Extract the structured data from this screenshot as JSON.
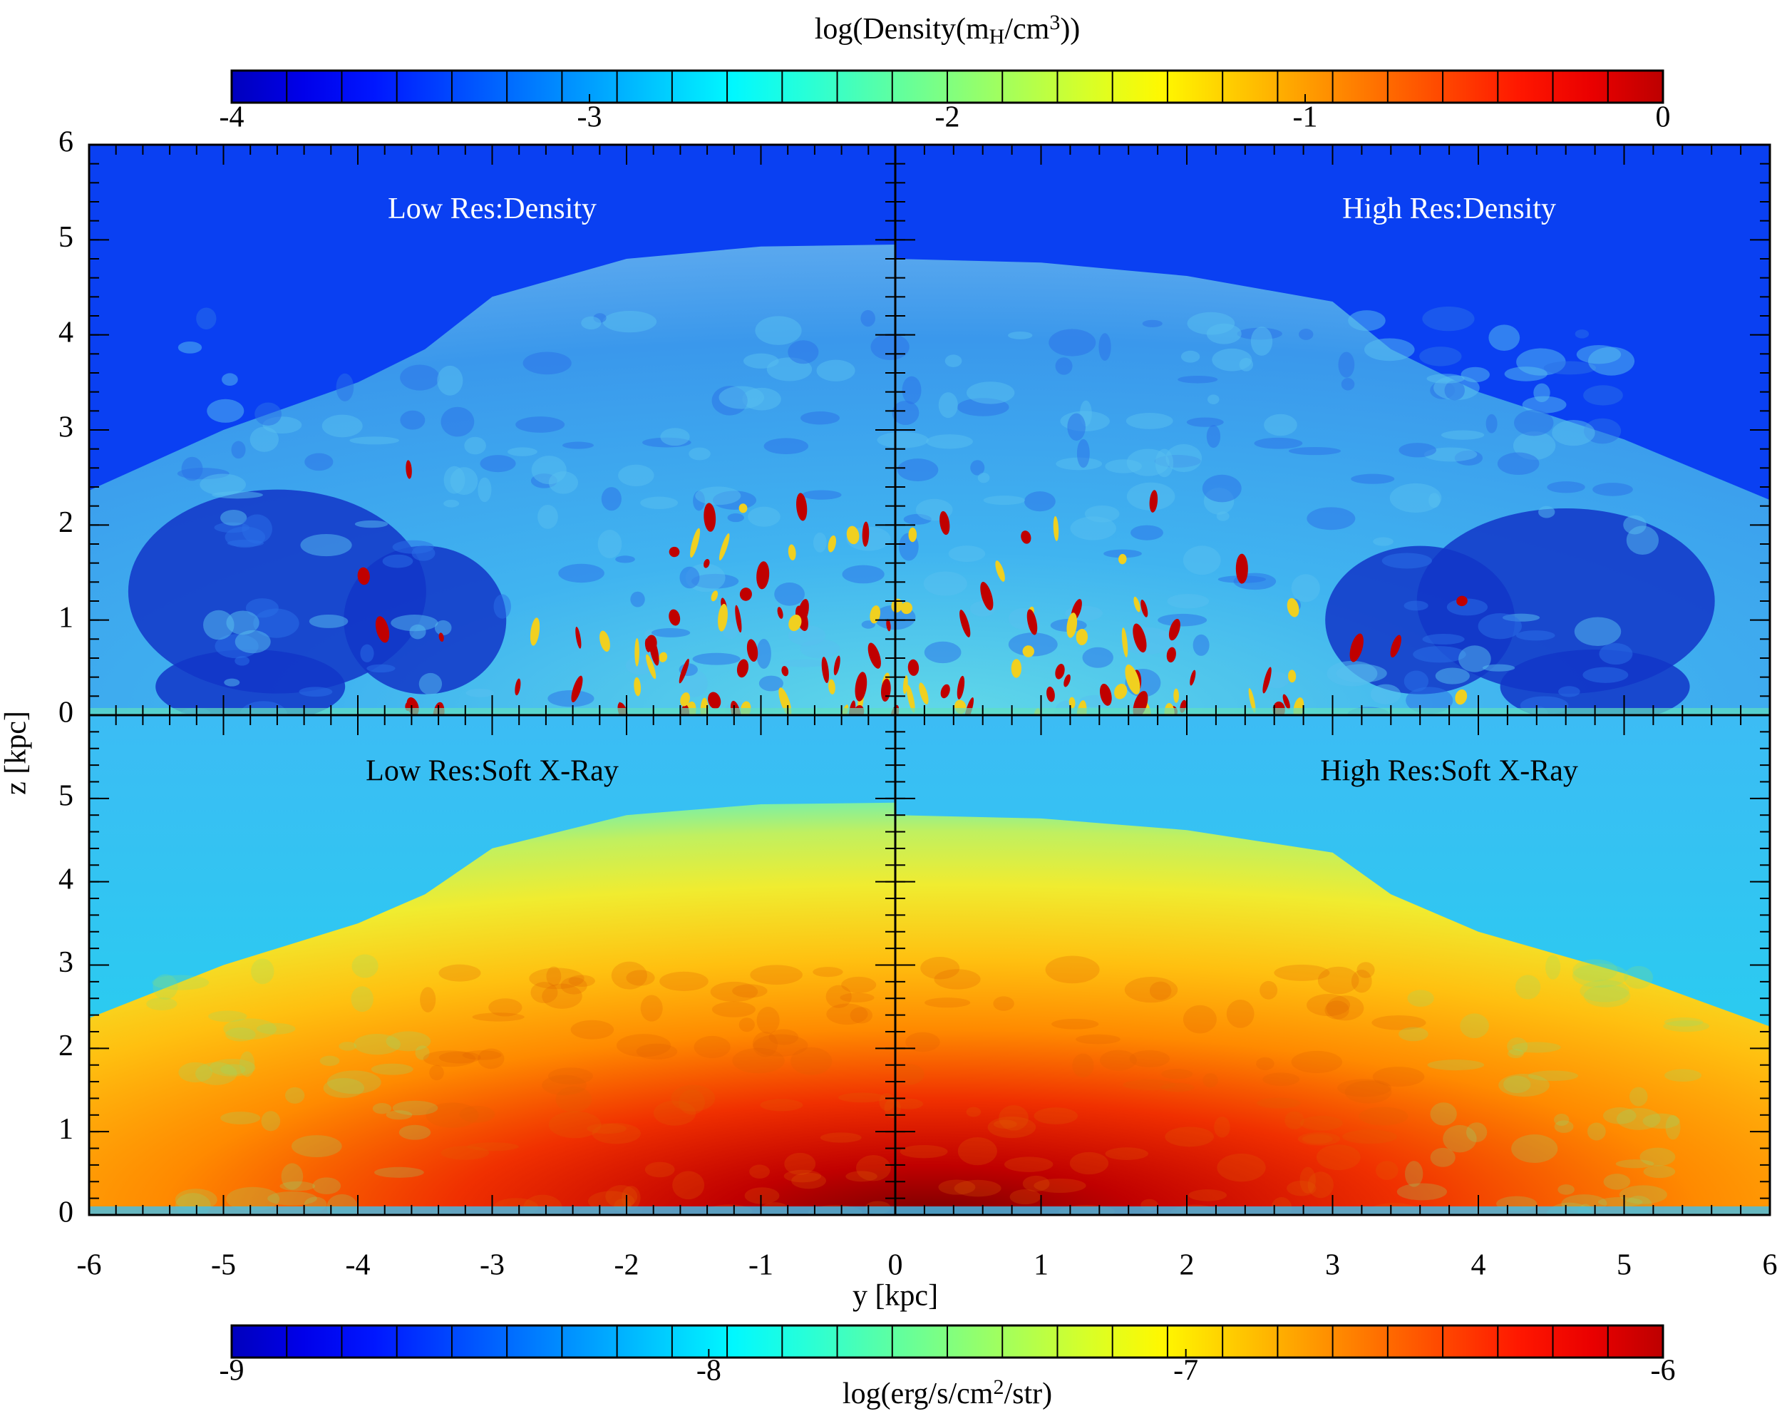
{
  "chart_data": [
    {
      "type": "heatmap",
      "colorbar_label": [
        "log(Density(m",
        "H",
        "/cm",
        "3",
        "))"
      ],
      "colorbar_lim": [
        -4,
        0
      ],
      "colorbar_ticks": [
        -4,
        -3,
        -2,
        -1,
        0
      ],
      "panels": [
        "Low Res:Density",
        "High Res:Density"
      ],
      "xlim": [
        -6,
        6
      ],
      "ylim": [
        0,
        6
      ],
      "yticks": [
        0,
        1,
        2,
        3,
        4,
        5,
        6
      ]
    },
    {
      "type": "heatmap",
      "colorbar_label": [
        "log(erg/s/cm",
        "2",
        "/str)"
      ],
      "colorbar_lim": [
        -9,
        -6
      ],
      "colorbar_ticks": [
        -9,
        -8,
        -7,
        -6
      ],
      "panels": [
        "Low Res:Soft X-Ray",
        "High Res:Soft X-Ray"
      ],
      "xlabel": "y [kpc]",
      "ylabel": "z [kpc]",
      "xlim": [
        -6,
        6
      ],
      "xticks": [
        -6,
        -5,
        -4,
        -3,
        -2,
        -1,
        0,
        1,
        2,
        3,
        4,
        5,
        6
      ],
      "ylim": [
        0,
        6
      ],
      "yticks": [
        0,
        1,
        2,
        3,
        4,
        5
      ]
    }
  ]
}
